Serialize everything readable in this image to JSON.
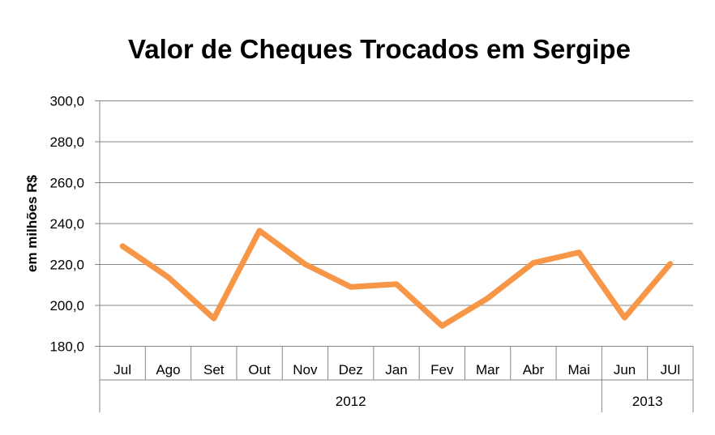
{
  "chart_data": {
    "type": "line",
    "title": "Valor de Cheques Trocados em Sergipe",
    "xlabel": "",
    "ylabel": "em milhões R$",
    "categories": [
      "Jul",
      "Ago",
      "Set",
      "Out",
      "Nov",
      "Dez",
      "Jan",
      "Fev",
      "Mar",
      "Abr",
      "Mai",
      "Jun",
      "JUl"
    ],
    "groups": [
      {
        "label": "2012",
        "start": 0,
        "end": 10
      },
      {
        "label": "2013",
        "start": 11,
        "end": 12
      }
    ],
    "series": [
      {
        "values": [
          229.0,
          213.8,
          193.6,
          236.5,
          220.1,
          209.0,
          210.4,
          190.0,
          203.5,
          220.8,
          225.9,
          194.0,
          220.3
        ]
      }
    ],
    "ylim": [
      180,
      300
    ],
    "yticks": [
      180,
      200,
      220,
      240,
      260,
      280,
      300
    ],
    "ytick_labels": [
      "180,0",
      "200,0",
      "220,0",
      "240,0",
      "260,0",
      "280,0",
      "300,0"
    ],
    "grid": true,
    "legend": "none",
    "line_color": "#F79646",
    "grid_color": "#868686"
  }
}
